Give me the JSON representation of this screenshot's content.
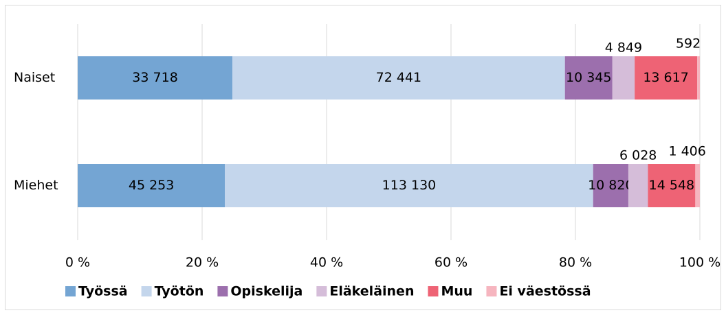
{
  "chart_data": {
    "type": "bar",
    "orientation": "horizontal",
    "stacking": "percent",
    "categories": [
      "Naiset",
      "Miehet"
    ],
    "series": [
      {
        "name": "Työssä",
        "color": "#74a5d3",
        "values": [
          33718,
          45253
        ],
        "value_labels": [
          "33 718",
          "45 253"
        ]
      },
      {
        "name": "Työtön",
        "color": "#c4d6ec",
        "values": [
          72441,
          113130
        ],
        "value_labels": [
          "72 441",
          "113 130"
        ]
      },
      {
        "name": "Opiskelija",
        "color": "#9c6fad",
        "values": [
          10345,
          10820
        ],
        "value_labels": [
          "10 345",
          "10 820"
        ]
      },
      {
        "name": "Eläkeläinen",
        "color": "#d5bdd9",
        "values": [
          4849,
          6028
        ],
        "value_labels": [
          "4 849",
          "6 028"
        ]
      },
      {
        "name": "Muu",
        "color": "#ee6375",
        "values": [
          13617,
          14548
        ],
        "value_labels": [
          "13 617",
          "14 548"
        ]
      },
      {
        "name": "Ei väestössä",
        "color": "#f6b5bf",
        "values": [
          592,
          1406
        ],
        "value_labels": [
          "592",
          "1 406"
        ]
      }
    ],
    "xlim": [
      0,
      100
    ],
    "xticks": [
      {
        "value": 0,
        "label": "0 %"
      },
      {
        "value": 20,
        "label": "20 %"
      },
      {
        "value": 40,
        "label": "40 %"
      },
      {
        "value": 60,
        "label": "60 %"
      },
      {
        "value": 80,
        "label": "80 %"
      },
      {
        "value": 100,
        "label": "100 %"
      }
    ],
    "grid": true,
    "legend": "bottom"
  }
}
